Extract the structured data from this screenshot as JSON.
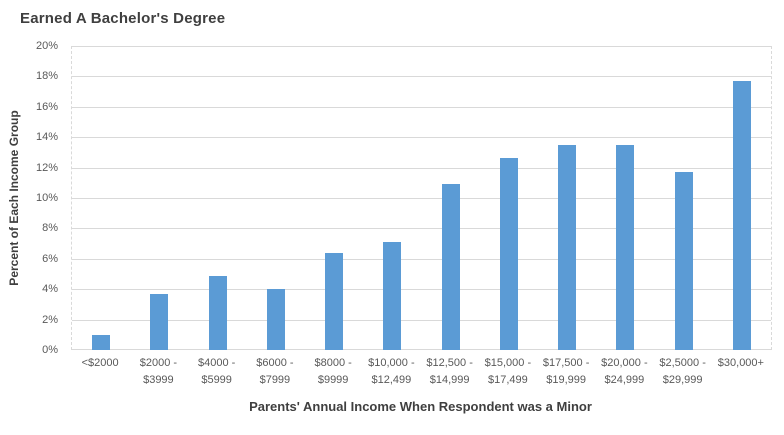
{
  "chart_data": {
    "type": "bar",
    "title": "Earned A Bachelor's Degree",
    "xlabel": "Parents' Annual Income When Respondent was a Minor",
    "ylabel": "Percent of Each Income Group",
    "ylim": [
      0,
      20
    ],
    "ytick_step": 2,
    "yticks": [
      "0%",
      "2%",
      "4%",
      "6%",
      "8%",
      "10%",
      "12%",
      "14%",
      "16%",
      "18%",
      "20%"
    ],
    "grid": true,
    "legend": "none",
    "bar_color": "#5b9bd5",
    "categories": [
      "<$2000",
      "$2000 - $3999",
      "$4000 - $5999",
      "$6000 - $7999",
      "$8000 - $9999",
      "$10,000 - $12,499",
      "$12,500 - $14,999",
      "$15,000 - $17,499",
      "$17,500 - $19,999",
      "$20,000 - $24,999",
      "$2,5000 - $29,999",
      "$30,000+"
    ],
    "categories_lines": [
      [
        "<$2000"
      ],
      [
        "$2000 -",
        "$3999"
      ],
      [
        "$4000 -",
        "$5999"
      ],
      [
        "$6000 -",
        "$7999"
      ],
      [
        "$8000 -",
        "$9999"
      ],
      [
        "$10,000 -",
        "$12,499"
      ],
      [
        "$12,500 -",
        "$14,999"
      ],
      [
        "$15,000 -",
        "$17,499"
      ],
      [
        "$17,500 -",
        "$19,999"
      ],
      [
        "$20,000 -",
        "$24,999"
      ],
      [
        "$2,5000 -",
        "$29,999"
      ],
      [
        "$30,000+"
      ]
    ],
    "values": [
      1.0,
      3.7,
      4.9,
      4.0,
      6.4,
      7.1,
      10.9,
      12.6,
      13.5,
      13.5,
      11.7,
      17.7
    ]
  },
  "colors": {
    "bar": "#5b9bd5",
    "gridline": "#d9d9d9",
    "title_text": "#3f3f3f",
    "tick_text": "#595959",
    "background": "#ffffff"
  }
}
